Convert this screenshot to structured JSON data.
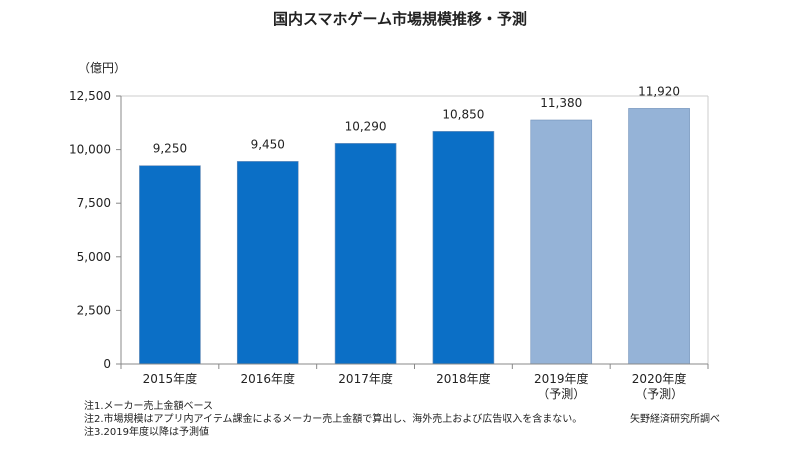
{
  "chart_data": {
    "type": "bar",
    "title": "国内スマホゲーム市場規模推移・予測",
    "ylabel": "（億円）",
    "xlabel": "",
    "ylim": [
      0,
      12500
    ],
    "yticks": [
      0,
      2500,
      5000,
      7500,
      10000,
      12500
    ],
    "ytick_labels": [
      "0",
      "2,500",
      "5,000",
      "7,500",
      "10,000",
      "12,500"
    ],
    "grid": false,
    "categories": [
      [
        "2015年度"
      ],
      [
        "2016年度"
      ],
      [
        "2017年度"
      ],
      [
        "2018年度"
      ],
      [
        "2019年度",
        "（予測）"
      ],
      [
        "2020年度",
        "（予測）"
      ]
    ],
    "values": [
      9250,
      9450,
      10290,
      10850,
      11380,
      11920
    ],
    "value_labels": [
      "9,250",
      "9,450",
      "10,290",
      "10,850",
      "11,380",
      "11,920"
    ],
    "forecast": [
      false,
      false,
      false,
      false,
      true,
      true
    ],
    "colors": {
      "actual": "#0b6fc6",
      "forecast": "#95b3d7",
      "axis": "#888888"
    }
  },
  "notes": [
    "注1.メーカー売上金額ベース",
    "注2.市場規模はアプリ内アイテム課金によるメーカー売上金額で算出し、海外売上および広告収入を含まない。",
    "注3.2019年度以降は予測値"
  ],
  "source": "矢野経済研究所調べ"
}
